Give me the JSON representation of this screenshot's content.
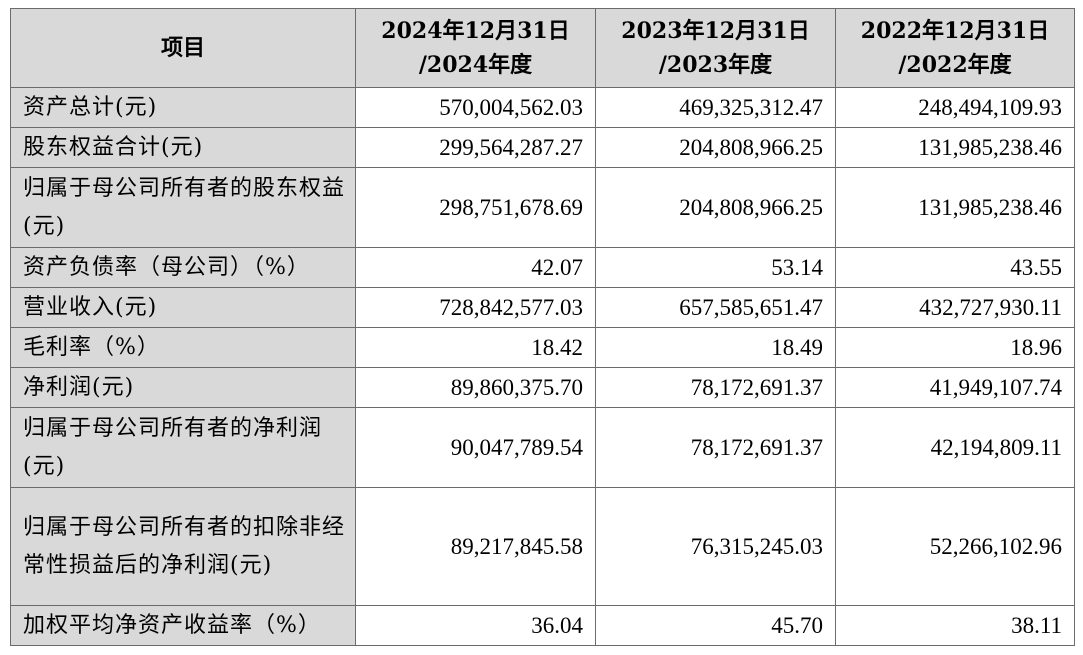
{
  "table": {
    "header": {
      "item": "项目",
      "col1_line1": "2024年12月31日",
      "col1_line2": "/2024年度",
      "col2_line1": "2023年12月31日",
      "col2_line2": "/2023年度",
      "col3_line1": "2022年12月31日",
      "col3_line2": "/2022年度"
    },
    "rows": [
      {
        "label": "资产总计(元)",
        "v2024": "570,004,562.03",
        "v2023": "469,325,312.47",
        "v2022": "248,494,109.93"
      },
      {
        "label": "股东权益合计(元)",
        "v2024": "299,564,287.27",
        "v2023": "204,808,966.25",
        "v2022": "131,985,238.46"
      },
      {
        "label": "归属于母公司所有者的股东权益(元)",
        "v2024": "298,751,678.69",
        "v2023": "204,808,966.25",
        "v2022": "131,985,238.46"
      },
      {
        "label": "资产负债率（母公司）（%）",
        "v2024": "42.07",
        "v2023": "53.14",
        "v2022": "43.55"
      },
      {
        "label": "营业收入(元)",
        "v2024": "728,842,577.03",
        "v2023": "657,585,651.47",
        "v2022": "432,727,930.11"
      },
      {
        "label": "毛利率（%）",
        "v2024": "18.42",
        "v2023": "18.49",
        "v2022": "18.96"
      },
      {
        "label": "净利润(元)",
        "v2024": "89,860,375.70",
        "v2023": "78,172,691.37",
        "v2022": "41,949,107.74"
      },
      {
        "label": "归属于母公司所有者的净利润(元)",
        "v2024": "90,047,789.54",
        "v2023": "78,172,691.37",
        "v2022": "42,194,809.11"
      },
      {
        "label": "归属于母公司所有者的扣除非经常性损益后的净利润(元)",
        "v2024": "89,217,845.58",
        "v2023": "76,315,245.03",
        "v2022": "52,266,102.96"
      },
      {
        "label": "加权平均净资产收益率（%）",
        "v2024": "36.04",
        "v2023": "45.70",
        "v2022": "38.11"
      }
    ]
  }
}
